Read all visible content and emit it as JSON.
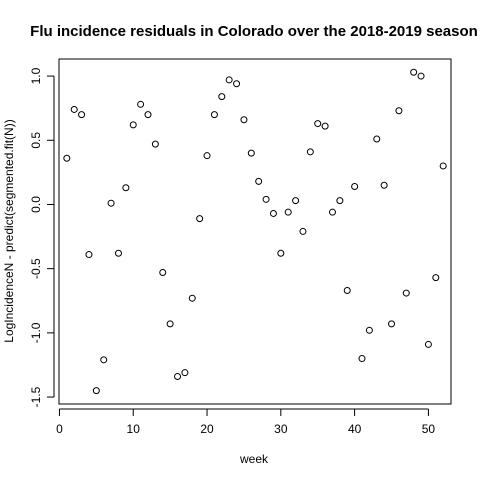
{
  "chart_data": {
    "type": "scatter",
    "title": "Flu incidence residuals in Colorado over the 2018-2019 season",
    "xlabel": "week",
    "ylabel": "LogIncidenceN - predict(segmented.fit(N))",
    "xlim": [
      -0.06,
      53.06
    ],
    "ylim": [
      -1.554,
      1.133
    ],
    "xticks": [
      0,
      10,
      20,
      30,
      40,
      50
    ],
    "yticks": [
      -1.5,
      -1.0,
      -0.5,
      0.0,
      0.5,
      1.0
    ],
    "xtick_labels": [
      "0",
      "10",
      "20",
      "30",
      "40",
      "50"
    ],
    "ytick_labels": [
      "-1.5",
      "-1.0",
      "-0.5",
      "0.0",
      "0.5",
      "1.0"
    ],
    "grid": false,
    "x": [
      1,
      2,
      3,
      4,
      5,
      6,
      7,
      8,
      9,
      10,
      11,
      12,
      13,
      14,
      15,
      16,
      17,
      18,
      19,
      20,
      21,
      22,
      23,
      24,
      25,
      26,
      27,
      28,
      29,
      30,
      31,
      32,
      33,
      34,
      35,
      36,
      37,
      38,
      39,
      40,
      41,
      42,
      43,
      44,
      45,
      46,
      47,
      48,
      49,
      50,
      51,
      52
    ],
    "y": [
      0.36,
      0.74,
      0.7,
      -0.39,
      -1.45,
      -1.21,
      0.01,
      -0.38,
      0.13,
      0.62,
      0.78,
      0.7,
      0.47,
      -0.53,
      -0.93,
      -1.34,
      -1.31,
      -0.73,
      -0.11,
      0.38,
      0.7,
      0.84,
      0.97,
      0.94,
      0.66,
      0.4,
      0.18,
      0.04,
      -0.07,
      -0.38,
      -0.06,
      0.03,
      -0.21,
      0.41,
      0.63,
      0.61,
      -0.06,
      0.03,
      -0.67,
      0.14,
      -1.2,
      -0.98,
      0.51,
      0.15,
      -0.93,
      0.73,
      -0.69,
      1.03,
      1.0,
      -1.09,
      -0.57,
      0.3
    ]
  }
}
